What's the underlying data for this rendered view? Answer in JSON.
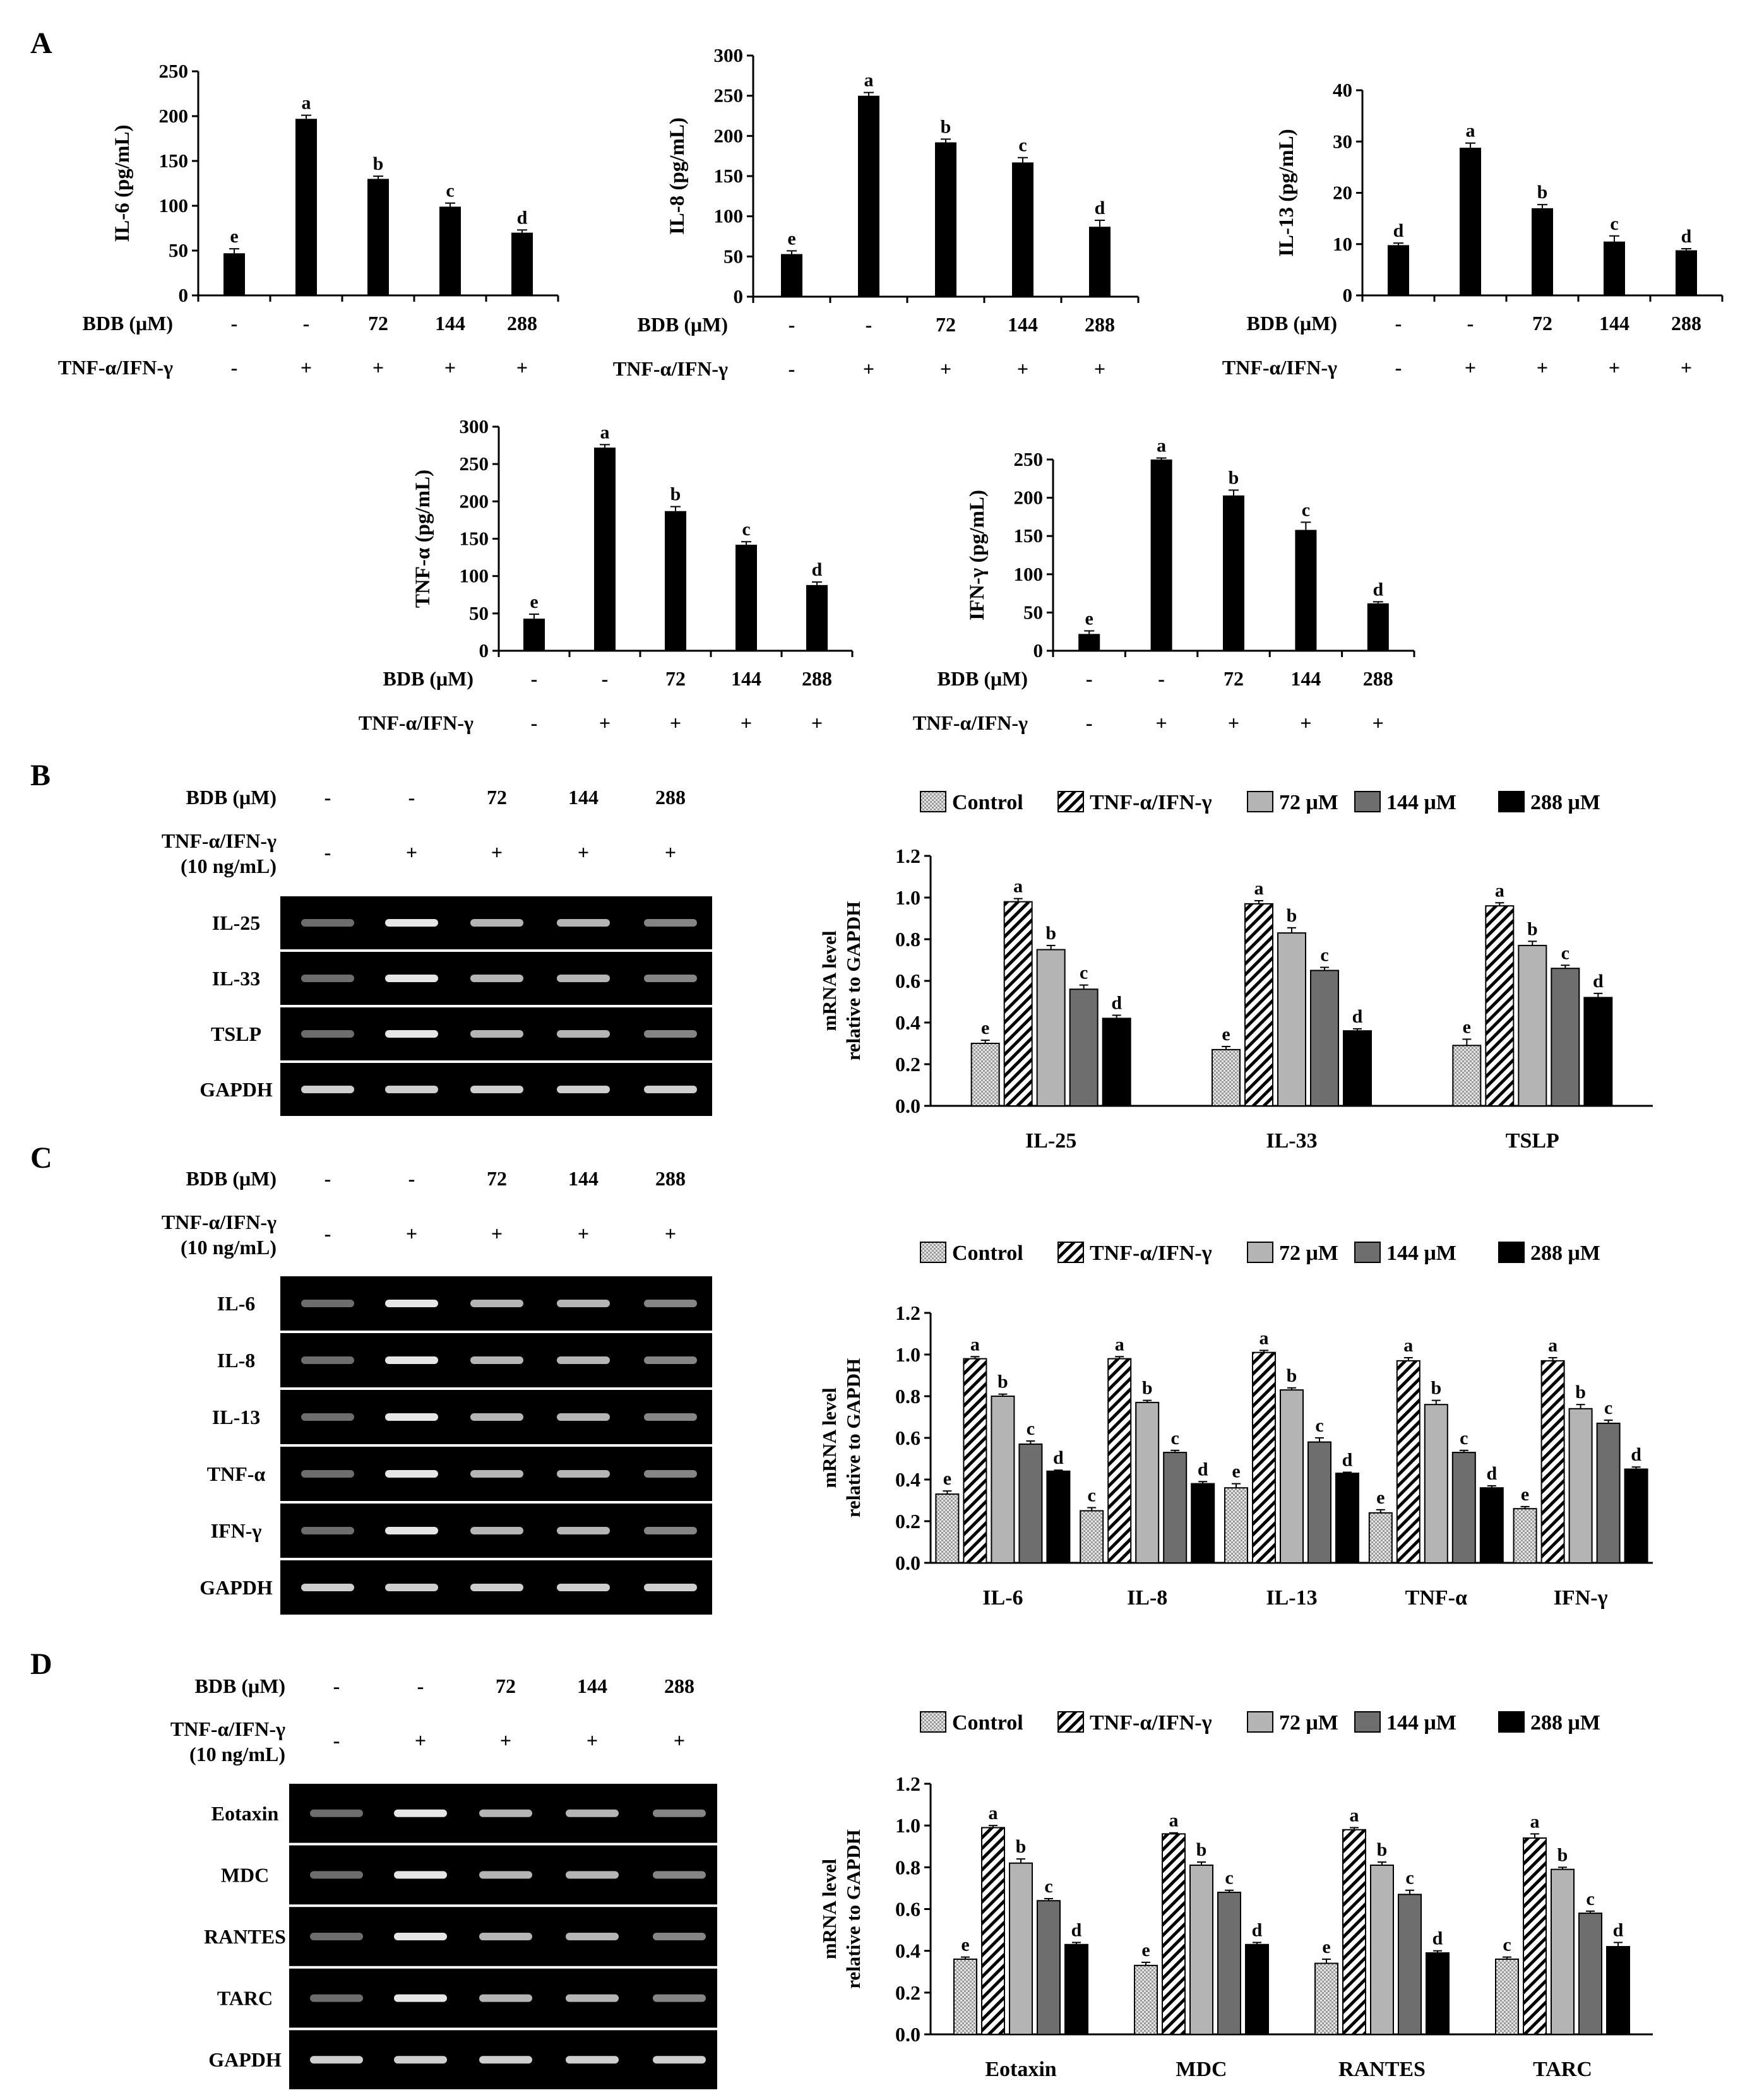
{
  "panel_labels": [
    "A",
    "B",
    "C",
    "D"
  ],
  "treatment_rows": {
    "bdb_label": "BDB (μM)",
    "bdb_values": [
      "-",
      "-",
      "72",
      "144",
      "288"
    ],
    "tnf_label": "TNF-α/IFN-γ",
    "tnf_values": [
      "-",
      "+",
      "+",
      "+",
      "+"
    ],
    "tnf_conc": "(10 ng/mL)"
  },
  "legend": {
    "items": [
      "Control",
      "TNF-α/IFN-γ",
      "72 μM",
      "144 μM",
      "288 μM"
    ],
    "colors": [
      "#cfcfcf",
      "#ffffff",
      "#b4b4b4",
      "#6e6e6e",
      "#000000"
    ]
  },
  "colors": {
    "bar_fill": "#000000",
    "axis": "#000000",
    "gel_bg": "#000000",
    "gel_band": "#f2f2f2"
  },
  "gel_b": {
    "bands": [
      "IL-25",
      "IL-33",
      "TSLP",
      "GAPDH"
    ]
  },
  "gel_c": {
    "bands": [
      "IL-6",
      "IL-8",
      "IL-13",
      "TNF-α",
      "IFN-γ",
      "GAPDH"
    ]
  },
  "gel_d": {
    "bands": [
      "Eotaxin",
      "MDC",
      "RANTES",
      "TARC",
      "GAPDH"
    ]
  },
  "chart_data": [
    {
      "id": "a1",
      "type": "bar",
      "ylabel": "IL-6 (pg/mL)",
      "categories": [
        "-/-",
        "-/+",
        "72/+",
        "144/+",
        "288/+"
      ],
      "values": [
        47,
        197,
        130,
        99,
        70
      ],
      "errors": [
        5,
        4,
        3,
        4,
        3
      ],
      "letters": [
        "e",
        "a",
        "b",
        "c",
        "d"
      ],
      "ylim": [
        0,
        250
      ],
      "yticks": [
        0,
        50,
        100,
        150,
        200,
        250
      ],
      "ytick_labels": [
        "0",
        "50",
        "100",
        "150",
        "200",
        "250"
      ]
    },
    {
      "id": "a2",
      "type": "bar",
      "ylabel": "IL-8 (pg/mL)",
      "categories": [
        "-/-",
        "-/+",
        "72/+",
        "144/+",
        "288/+"
      ],
      "values": [
        53,
        250,
        192,
        167,
        87
      ],
      "errors": [
        4,
        4,
        4,
        6,
        8
      ],
      "letters": [
        "e",
        "a",
        "b",
        "c",
        "d"
      ],
      "ylim": [
        0,
        300
      ],
      "yticks": [
        0,
        50,
        100,
        150,
        200,
        250,
        300
      ],
      "ytick_labels": [
        "0",
        "50",
        "100",
        "150",
        "200",
        "250",
        "300"
      ]
    },
    {
      "id": "a3",
      "type": "bar",
      "ylabel": "IL-13 (pg/mL)",
      "categories": [
        "-/-",
        "-/+",
        "72/+",
        "144/+",
        "288/+"
      ],
      "values": [
        9.8,
        28.8,
        17,
        10.5,
        8.8
      ],
      "errors": [
        0.4,
        0.9,
        0.7,
        1.1,
        0.3
      ],
      "letters": [
        "d",
        "a",
        "b",
        "c",
        "d"
      ],
      "ylim": [
        0,
        40
      ],
      "yticks": [
        0,
        10,
        20,
        30,
        40
      ],
      "ytick_labels": [
        "0",
        "10",
        "20",
        "30",
        "40"
      ]
    },
    {
      "id": "a4",
      "type": "bar",
      "ylabel": "TNF-α (pg/mL)",
      "categories": [
        "-/-",
        "-/+",
        "72/+",
        "144/+",
        "288/+"
      ],
      "values": [
        43,
        272,
        187,
        142,
        88
      ],
      "errors": [
        6,
        4,
        6,
        4,
        4
      ],
      "letters": [
        "e",
        "a",
        "b",
        "c",
        "d"
      ],
      "ylim": [
        0,
        300
      ],
      "yticks": [
        0,
        50,
        100,
        150,
        200,
        250,
        300
      ],
      "ytick_labels": [
        "0",
        "50",
        "100",
        "150",
        "200",
        "250",
        "300"
      ]
    },
    {
      "id": "a5",
      "type": "bar",
      "ylabel": "IFN-γ (pg/mL)",
      "categories": [
        "-/-",
        "-/+",
        "72/+",
        "144/+",
        "288/+"
      ],
      "values": [
        22,
        250,
        203,
        158,
        62
      ],
      "errors": [
        4,
        2,
        7,
        10,
        2
      ],
      "letters": [
        "e",
        "a",
        "b",
        "c",
        "d"
      ],
      "ylim": [
        0,
        250
      ],
      "yticks": [
        0,
        50,
        100,
        150,
        200,
        250
      ],
      "ytick_labels": [
        "0",
        "50",
        "100",
        "150",
        "200",
        "250"
      ]
    },
    {
      "id": "b",
      "type": "bar",
      "ylabel_lines": [
        "mRNA level",
        "relative to GAPDH"
      ],
      "categories": [
        "IL-25",
        "IL-33",
        "TSLP"
      ],
      "series": [
        {
          "name": "Control",
          "values": [
            0.3,
            0.27,
            0.29
          ],
          "errors": [
            0.015,
            0.015,
            0.03
          ],
          "letters": [
            "e",
            "e",
            "e"
          ]
        },
        {
          "name": "TNF-α/IFN-γ",
          "values": [
            0.98,
            0.97,
            0.96
          ],
          "errors": [
            0.015,
            0.015,
            0.015
          ],
          "letters": [
            "a",
            "a",
            "a"
          ]
        },
        {
          "name": "72 μM",
          "values": [
            0.75,
            0.83,
            0.77
          ],
          "errors": [
            0.02,
            0.025,
            0.02
          ],
          "letters": [
            "b",
            "b",
            "b"
          ]
        },
        {
          "name": "144 μM",
          "values": [
            0.56,
            0.65,
            0.66
          ],
          "errors": [
            0.02,
            0.015,
            0.015
          ],
          "letters": [
            "c",
            "c",
            "c"
          ]
        },
        {
          "name": "288 μM",
          "values": [
            0.42,
            0.36,
            0.52
          ],
          "errors": [
            0.015,
            0.01,
            0.02
          ],
          "letters": [
            "d",
            "d",
            "d"
          ]
        }
      ],
      "ylim": [
        0,
        1.2
      ],
      "yticks": [
        0,
        0.2,
        0.4,
        0.6,
        0.8,
        1.0,
        1.2
      ],
      "ytick_labels": [
        "0.0",
        "0.2",
        "0.4",
        "0.6",
        "0.8",
        "1.0",
        "1.2"
      ]
    },
    {
      "id": "c",
      "type": "bar",
      "ylabel_lines": [
        "mRNA level",
        "relative to GAPDH"
      ],
      "categories": [
        "IL-6",
        "IL-8",
        "IL-13",
        "TNF-α",
        "IFN-γ"
      ],
      "series": [
        {
          "name": "Control",
          "values": [
            0.33,
            0.25,
            0.36,
            0.24,
            0.26
          ],
          "errors": [
            0.015,
            0.015,
            0.02,
            0.015,
            0.01
          ],
          "letters": [
            "e",
            "c",
            "e",
            "e",
            "e"
          ]
        },
        {
          "name": "TNF-α/IFN-γ",
          "values": [
            0.98,
            0.98,
            1.01,
            0.97,
            0.97
          ],
          "errors": [
            0.01,
            0.01,
            0.01,
            0.015,
            0.015
          ],
          "letters": [
            "a",
            "a",
            "a",
            "a",
            "a"
          ]
        },
        {
          "name": "72 μM",
          "values": [
            0.8,
            0.77,
            0.83,
            0.76,
            0.74
          ],
          "errors": [
            0.01,
            0.01,
            0.01,
            0.02,
            0.02
          ],
          "letters": [
            "b",
            "b",
            "b",
            "b",
            "b"
          ]
        },
        {
          "name": "144 μM",
          "values": [
            0.57,
            0.53,
            0.58,
            0.53,
            0.67
          ],
          "errors": [
            0.015,
            0.01,
            0.02,
            0.01,
            0.015
          ],
          "letters": [
            "c",
            "c",
            "c",
            "c",
            "c"
          ]
        },
        {
          "name": "288 μM",
          "values": [
            0.44,
            0.38,
            0.43,
            0.36,
            0.45
          ],
          "errors": [
            0.005,
            0.01,
            0.005,
            0.01,
            0.01
          ],
          "letters": [
            "d",
            "d",
            "d",
            "d",
            "d"
          ]
        }
      ],
      "ylim": [
        0,
        1.2
      ],
      "yticks": [
        0,
        0.2,
        0.4,
        0.6,
        0.8,
        1.0,
        1.2
      ],
      "ytick_labels": [
        "0.0",
        "0.2",
        "0.4",
        "0.6",
        "0.8",
        "1.0",
        "1.2"
      ]
    },
    {
      "id": "d",
      "type": "bar",
      "ylabel_lines": [
        "mRNA level",
        "relative to GAPDH"
      ],
      "categories": [
        "Eotaxin",
        "MDC",
        "RANTES",
        "TARC"
      ],
      "series": [
        {
          "name": "Control",
          "values": [
            0.36,
            0.33,
            0.34,
            0.36
          ],
          "errors": [
            0.01,
            0.015,
            0.02,
            0.01
          ],
          "letters": [
            "e",
            "e",
            "e",
            "c"
          ]
        },
        {
          "name": "TNF-α/IFN-γ",
          "values": [
            0.99,
            0.96,
            0.98,
            0.94
          ],
          "errors": [
            0.01,
            0.005,
            0.01,
            0.02
          ],
          "letters": [
            "a",
            "a",
            "a",
            "a"
          ]
        },
        {
          "name": "72 μM",
          "values": [
            0.82,
            0.81,
            0.81,
            0.79
          ],
          "errors": [
            0.02,
            0.015,
            0.015,
            0.01
          ],
          "letters": [
            "b",
            "b",
            "b",
            "b"
          ]
        },
        {
          "name": "144 μM",
          "values": [
            0.64,
            0.68,
            0.67,
            0.58
          ],
          "errors": [
            0.01,
            0.01,
            0.02,
            0.01
          ],
          "letters": [
            "c",
            "c",
            "c",
            "c"
          ]
        },
        {
          "name": "288 μM",
          "values": [
            0.43,
            0.43,
            0.39,
            0.42
          ],
          "errors": [
            0.01,
            0.01,
            0.01,
            0.02
          ],
          "letters": [
            "d",
            "d",
            "d",
            "d"
          ]
        }
      ],
      "ylim": [
        0,
        1.2
      ],
      "yticks": [
        0,
        0.2,
        0.4,
        0.6,
        0.8,
        1.0,
        1.2
      ],
      "ytick_labels": [
        "0.0",
        "0.2",
        "0.4",
        "0.6",
        "0.8",
        "1.0",
        "1.2"
      ]
    }
  ]
}
